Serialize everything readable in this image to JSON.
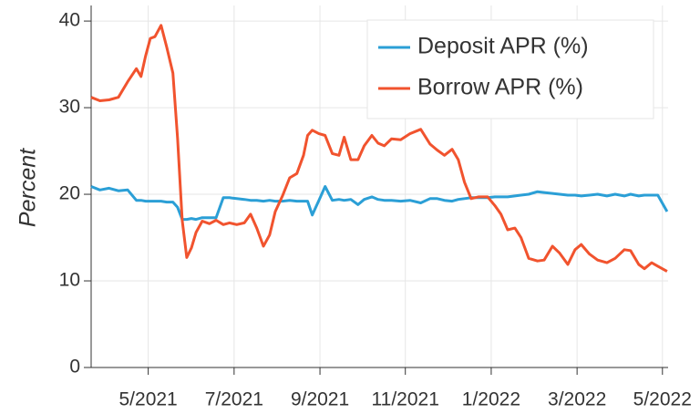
{
  "chart_data": {
    "type": "line",
    "y_label": "Percent",
    "x": [
      2021.222,
      2021.239,
      2021.257,
      2021.275,
      2021.293,
      2021.31,
      2021.319,
      2021.328,
      2021.337,
      2021.346,
      2021.358,
      2021.369,
      2021.381,
      2021.39,
      2021.399,
      2021.408,
      2021.417,
      2021.426,
      2021.438,
      2021.452,
      2021.465,
      2021.479,
      2021.491,
      2021.505,
      2021.52,
      2021.532,
      2021.544,
      2021.557,
      2021.569,
      2021.58,
      2021.594,
      2021.608,
      2021.622,
      2021.635,
      2021.643,
      2021.652,
      2021.665,
      2021.677,
      2021.691,
      2021.704,
      2021.714,
      2021.727,
      2021.741,
      2021.753,
      2021.768,
      2021.78,
      2021.792,
      2021.806,
      2021.824,
      2021.842,
      2021.863,
      2021.881,
      2021.895,
      2021.909,
      2021.924,
      2021.936,
      2021.948,
      2021.961,
      2021.975,
      2021.993,
      2022.007,
      2022.019,
      2022.032,
      2022.046,
      2022.058,
      2022.073,
      2022.09,
      2022.103,
      2022.119,
      2022.133,
      2022.149,
      2022.163,
      2022.175,
      2022.191,
      2022.207,
      2022.225,
      2022.241,
      2022.259,
      2022.271,
      2022.287,
      2022.298,
      2022.312,
      2022.324,
      2022.342
    ],
    "series": [
      {
        "name": "Deposit APR (%)",
        "color": "#2b9fd6",
        "values": [
          20.9,
          20.5,
          20.7,
          20.4,
          20.5,
          19.3,
          19.3,
          19.2,
          19.2,
          19.2,
          19.2,
          19.1,
          19.1,
          18.5,
          17.1,
          17.1,
          17.2,
          17.1,
          17.3,
          17.3,
          17.3,
          19.6,
          19.6,
          19.5,
          19.4,
          19.3,
          19.3,
          19.2,
          19.3,
          19.2,
          19.2,
          19.3,
          19.2,
          19.2,
          19.2,
          17.6,
          19.3,
          20.9,
          19.3,
          19.4,
          19.3,
          19.4,
          18.8,
          19.4,
          19.7,
          19.4,
          19.3,
          19.3,
          19.2,
          19.3,
          19.0,
          19.5,
          19.5,
          19.3,
          19.2,
          19.4,
          19.5,
          19.6,
          19.6,
          19.6,
          19.7,
          19.7,
          19.7,
          19.8,
          19.9,
          20.0,
          20.3,
          20.2,
          20.1,
          20.0,
          19.9,
          19.9,
          19.8,
          19.9,
          20.0,
          19.8,
          20.0,
          19.8,
          20.0,
          19.8,
          19.9,
          19.9,
          19.9,
          18.0
        ]
      },
      {
        "name": "Borrow APR (%)",
        "color": "#f1532e",
        "values": [
          31.2,
          30.8,
          30.9,
          31.2,
          33.0,
          34.5,
          33.6,
          36.0,
          38.0,
          38.2,
          39.5,
          37.0,
          34.0,
          26.5,
          17.0,
          12.7,
          13.8,
          15.6,
          16.9,
          16.6,
          17.0,
          16.5,
          16.7,
          16.5,
          16.7,
          17.7,
          16.1,
          14.0,
          15.3,
          18.0,
          19.8,
          21.9,
          22.4,
          24.5,
          26.8,
          27.4,
          27.0,
          26.8,
          24.7,
          24.5,
          26.6,
          24.0,
          24.0,
          25.6,
          26.8,
          25.9,
          25.6,
          26.4,
          26.3,
          27.0,
          27.5,
          25.8,
          25.1,
          24.5,
          25.2,
          24.0,
          21.4,
          19.5,
          19.7,
          19.7,
          18.7,
          17.7,
          15.9,
          16.1,
          15.0,
          12.6,
          12.3,
          12.4,
          14.0,
          13.2,
          11.9,
          13.6,
          14.2,
          13.1,
          12.4,
          12.1,
          12.6,
          13.6,
          13.5,
          11.9,
          11.4,
          12.1,
          11.7,
          11.1
        ]
      }
    ],
    "xlim": [
      2021.222,
      2022.344
    ],
    "xticks": [
      {
        "value": 2021.333,
        "label": "5/2021"
      },
      {
        "value": 2021.5,
        "label": "7/2021"
      },
      {
        "value": 2021.667,
        "label": "9/2021"
      },
      {
        "value": 2021.833,
        "label": "11/2021"
      },
      {
        "value": 2022.0,
        "label": "1/2022"
      },
      {
        "value": 2022.167,
        "label": "3/2022"
      },
      {
        "value": 2022.333,
        "label": "5/2022"
      }
    ],
    "ylim": [
      0,
      41.8
    ],
    "yticks": [
      0,
      10,
      20,
      30,
      40
    ],
    "grid": true,
    "legend": "top-right"
  }
}
